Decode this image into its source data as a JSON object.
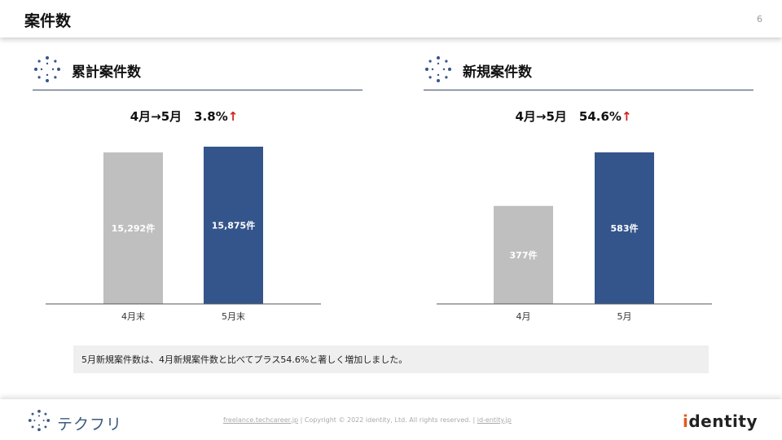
{
  "header": {
    "title": "案件数",
    "page_number": "6"
  },
  "sections": [
    {
      "title": "累計案件数",
      "growth": {
        "text": "4月→5月　3.8%",
        "arrow": "↑"
      },
      "chart_data": {
        "type": "bar",
        "categories": [
          "4月末",
          "5月末"
        ],
        "values": [
          15292,
          15875
        ],
        "data_labels": [
          "15,292件",
          "15,875件"
        ],
        "colors": [
          "#bfbfbf",
          "#34558b"
        ]
      }
    },
    {
      "title": "新規案件数",
      "growth": {
        "text": "4月→5月　54.6%",
        "arrow": "↑"
      },
      "chart_data": {
        "type": "bar",
        "categories": [
          "4月",
          "5月"
        ],
        "values": [
          377,
          583
        ],
        "data_labels": [
          "377件",
          "583件"
        ],
        "colors": [
          "#bfbfbf",
          "#34558b"
        ]
      }
    }
  ],
  "note": "5月新規案件数は、4月新規案件数と比べてプラス54.6%と著しく増加しました。",
  "footer": {
    "brand": "テクフリ",
    "link1": "freelance.techcareer.jp",
    "copyright": "Copyright © 2022 identity, Ltd. All rights reserved.",
    "link2": "id-entity.jp",
    "logo_i": "i",
    "logo_rest": "dentity"
  }
}
